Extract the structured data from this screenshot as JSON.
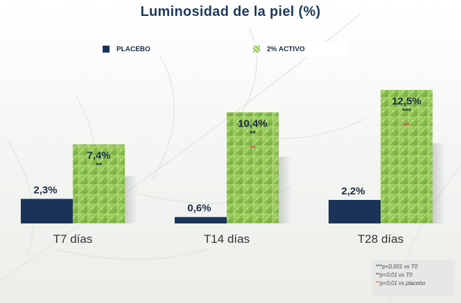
{
  "chart_data": {
    "type": "bar",
    "title": "Luminosidad de la piel (%)",
    "categories": [
      "T7 días",
      "T14 días",
      "T28 días"
    ],
    "series": [
      {
        "name": "PLACEBO",
        "values": [
          2.3,
          0.6,
          2.2
        ],
        "labels": [
          "2,3%",
          "0,6%",
          "2,2%"
        ],
        "color": "#1b3358"
      },
      {
        "name": "2% ACTIVO",
        "values": [
          7.4,
          10.4,
          12.5
        ],
        "labels": [
          "7,4%",
          "10,4%",
          "12,5%"
        ],
        "color": "#8bc34a",
        "sig_vs_t0": [
          "**",
          "**",
          "***"
        ],
        "sig_vs_placebo": [
          "",
          "**",
          "**"
        ]
      }
    ],
    "ylim": [
      0,
      12.5
    ],
    "legend": "top"
  },
  "notes": [
    {
      "stars": "***",
      "star_color": "blue",
      "text": "p<0,001 vs T0"
    },
    {
      "stars": "**",
      "star_color": "blue",
      "text": "p<0,01 vs T0"
    },
    {
      "stars": "**",
      "star_color": "red",
      "text": "p<0,01 vs placebo"
    }
  ]
}
